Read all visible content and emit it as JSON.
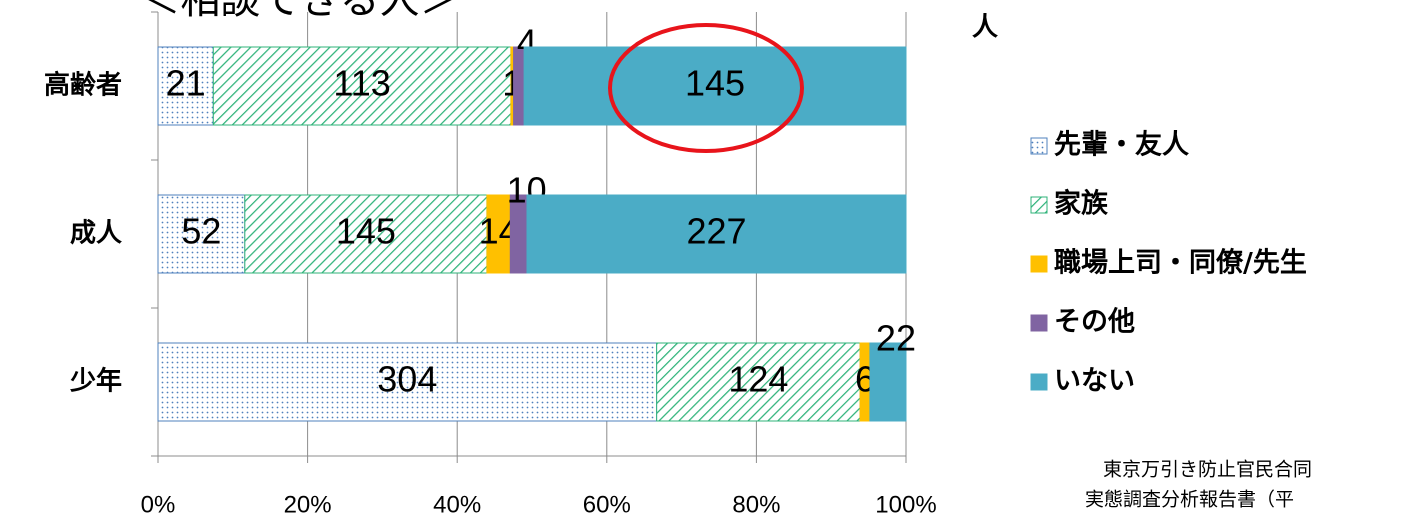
{
  "chart_data": {
    "type": "stacked_barh_percent",
    "title": "＜相談できる人＞",
    "unit_label": "人",
    "source": [
      "東京万引き防止官民合同",
      "実態調査分析報告書（平"
    ],
    "categories": [
      "高齢者",
      "成人",
      "少年"
    ],
    "series": [
      {
        "name": "先輩・友人",
        "color": "#4f81bd",
        "pattern": "dots",
        "values": [
          21,
          52,
          304
        ]
      },
      {
        "name": "家族",
        "color": "#2fb37a",
        "pattern": "hatch",
        "values": [
          113,
          145,
          124
        ]
      },
      {
        "name": "職場上司・同僚/先生",
        "color": "#ffc000",
        "values": [
          1,
          14,
          6
        ]
      },
      {
        "name": "その他",
        "color": "#8064a2",
        "values": [
          4,
          10,
          null
        ]
      },
      {
        "name": "いない",
        "color": "#4bacc6",
        "values": [
          145,
          227,
          22
        ]
      }
    ],
    "xlim": [
      0,
      100
    ],
    "xticks": [
      {
        "value": 0,
        "label": "0%"
      },
      {
        "value": 20,
        "label": "20%"
      },
      {
        "value": 40,
        "label": "40%"
      },
      {
        "value": 60,
        "label": "60%"
      },
      {
        "value": 80,
        "label": "80%"
      },
      {
        "value": 100,
        "label": "100%"
      }
    ],
    "grid": true
  }
}
